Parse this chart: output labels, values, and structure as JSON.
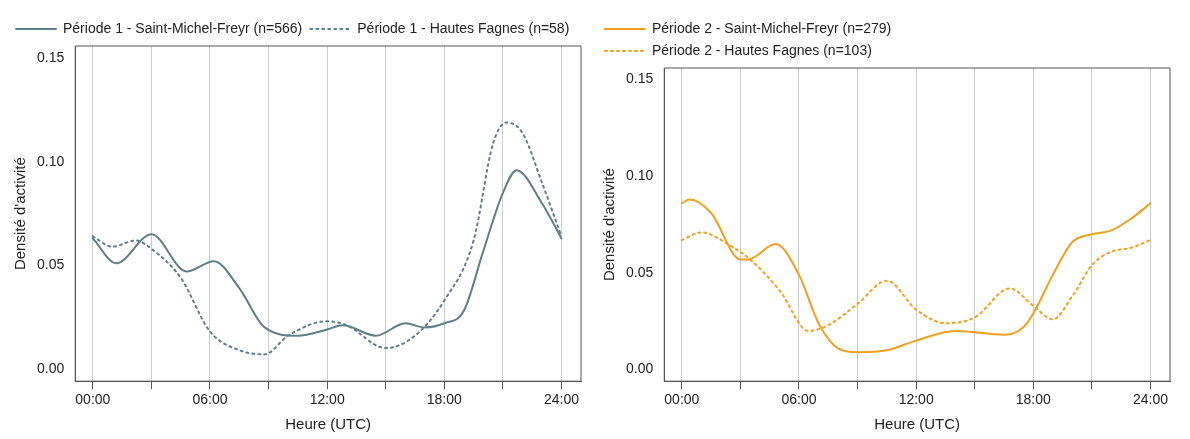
{
  "chart_data": [
    {
      "type": "line",
      "xlabel": "Heure (UTC)",
      "ylabel": "Densité d'activité",
      "legend": "top left",
      "grid": "x",
      "marker": "none",
      "xlim": [
        -0.9,
        25
      ],
      "xticks": [
        {
          "value": 0,
          "label": "00:00"
        },
        {
          "value": 3,
          "label": null
        },
        {
          "value": 6,
          "label": "06:00"
        },
        {
          "value": 9,
          "label": null
        },
        {
          "value": 12,
          "label": "12:00"
        },
        {
          "value": 15,
          "label": null
        },
        {
          "value": 18,
          "label": "18:00"
        },
        {
          "value": 21,
          "label": null
        },
        {
          "value": 24,
          "label": "24:00"
        }
      ],
      "ylim": [
        -0.006,
        0.156
      ],
      "yticks": [
        {
          "value": 0,
          "label": "0.00"
        },
        {
          "value": 0.05,
          "label": "0.05"
        },
        {
          "value": 0.1,
          "label": "0.10"
        },
        {
          "value": 0.15,
          "label": "0.15"
        }
      ],
      "series": [
        {
          "name": "Période 1 - Saint-Michel-Freyr (n=566)",
          "color": "#5f7f87",
          "line_style": "solid",
          "x": [
            0,
            1.2,
            3,
            4.8,
            6.2,
            7.5,
            8.8,
            10.5,
            12,
            12.8,
            14.5,
            16,
            17,
            18,
            19,
            20,
            21,
            21.7,
            23,
            24
          ],
          "values": [
            0.063,
            0.051,
            0.065,
            0.047,
            0.052,
            0.039,
            0.02,
            0.016,
            0.019,
            0.021,
            0.016,
            0.022,
            0.02,
            0.022,
            0.028,
            0.057,
            0.085,
            0.096,
            0.08,
            0.063
          ]
        },
        {
          "name": "Période 1 - Hautes Fagnes (n=58)",
          "color": "#5f7f87",
          "line_style": "dotted",
          "x": [
            0,
            1,
            2.2,
            3,
            4.5,
            6,
            7.5,
            8.8,
            10,
            12,
            13,
            15,
            16.5,
            18,
            19.5,
            20.5,
            21.2,
            22,
            23,
            24
          ],
          "values": [
            0.064,
            0.059,
            0.062,
            0.058,
            0.044,
            0.018,
            0.009,
            0.007,
            0.016,
            0.023,
            0.021,
            0.01,
            0.016,
            0.033,
            0.062,
            0.109,
            0.119,
            0.114,
            0.09,
            0.064
          ]
        }
      ]
    },
    {
      "type": "line",
      "xlabel": "Heure (UTC)",
      "ylabel": "Densité d'activité",
      "legend": "top left",
      "grid": "x",
      "marker": "none",
      "xlim": [
        -0.9,
        25
      ],
      "xticks": [
        {
          "value": 0,
          "label": "00:00"
        },
        {
          "value": 3,
          "label": null
        },
        {
          "value": 6,
          "label": "06:00"
        },
        {
          "value": 9,
          "label": null
        },
        {
          "value": 12,
          "label": "12:00"
        },
        {
          "value": 15,
          "label": null
        },
        {
          "value": 18,
          "label": "18:00"
        },
        {
          "value": 21,
          "label": null
        },
        {
          "value": 24,
          "label": "24:00"
        }
      ],
      "ylim": [
        -0.006,
        0.156
      ],
      "yticks": [
        {
          "value": 0,
          "label": "0.00"
        },
        {
          "value": 0.05,
          "label": "0.05"
        },
        {
          "value": 0.1,
          "label": "0.10"
        },
        {
          "value": 0.15,
          "label": "0.15"
        }
      ],
      "series": [
        {
          "name": "Période 2 - Saint-Michel-Freyr (n=279)",
          "color": "#f0a020",
          "line_style": "solid",
          "x": [
            0,
            0.4,
            1.5,
            3,
            3.4,
            4.8,
            6,
            7,
            8,
            9,
            10.5,
            12,
            14,
            16.5,
            17.5,
            18,
            19,
            20,
            21,
            22,
            23,
            24
          ],
          "values": [
            0.086,
            0.088,
            0.081,
            0.057,
            0.057,
            0.065,
            0.049,
            0.024,
            0.011,
            0.009,
            0.01,
            0.015,
            0.02,
            0.018,
            0.022,
            0.029,
            0.049,
            0.066,
            0.07,
            0.072,
            0.078,
            0.086
          ]
        },
        {
          "name": "Période 2 - Hautes Fagnes (n=103)",
          "color": "#f0a020",
          "line_style": "dotted",
          "x": [
            0,
            1,
            2.5,
            3.5,
            5,
            6.5,
            7.5,
            9,
            10.5,
            12,
            13.5,
            15,
            16.8,
            18,
            19,
            20,
            21,
            22,
            23,
            24
          ],
          "values": [
            0.067,
            0.071,
            0.064,
            0.057,
            0.041,
            0.02,
            0.023,
            0.034,
            0.046,
            0.031,
            0.024,
            0.027,
            0.042,
            0.033,
            0.026,
            0.038,
            0.054,
            0.061,
            0.063,
            0.067
          ]
        }
      ]
    }
  ]
}
